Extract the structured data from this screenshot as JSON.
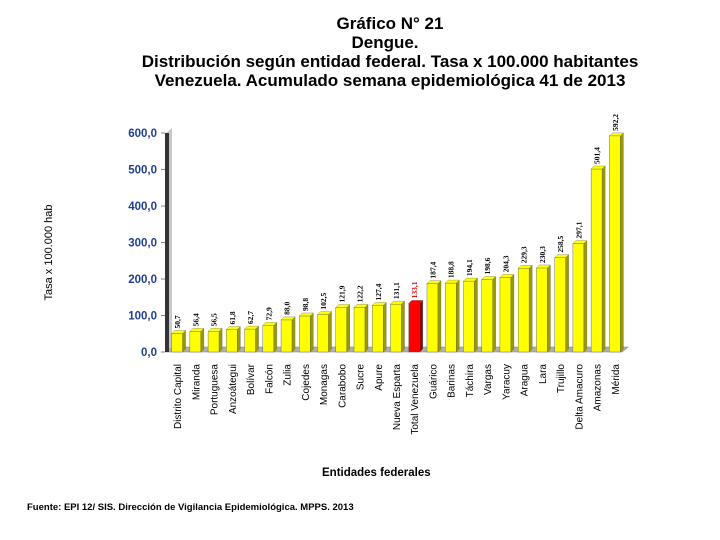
{
  "header": {
    "figure_number": "Gráfico  N° 21",
    "disease": "Dengue.",
    "subtitle": "Distribución según entidad federal. Tasa x 100.000 habitantes",
    "context": "Venezuela. Acumulado semana epidemiológica 41 de 2013"
  },
  "source": "Fuente: EPI 12/ SIS. Dirección de Vigilancia Epidemiológica. MPPS. 2013",
  "colors": {
    "bar": "#ffff00",
    "bar_highlight": "#ff0000",
    "bar_side": "#9a9a00",
    "bar_side_highlight": "#8a0000",
    "axis_text": "#1f3f8f",
    "wall": "#c8c8c8",
    "floor": "#b0b0b0"
  },
  "chart_data": {
    "type": "bar",
    "title": "Distribución según entidad federal. Tasa x 100.000 habitantes",
    "xlabel": "Entidades federales",
    "ylabel": "Tasa x 100.000 hab",
    "ylim": [
      0,
      600
    ],
    "yticks": [
      "0,0",
      "100,0",
      "200,0",
      "300,0",
      "400,0",
      "500,0",
      "600,0"
    ],
    "ytick_values": [
      0,
      100,
      200,
      300,
      400,
      500,
      600
    ],
    "highlight_category": "Total Venezuela",
    "categories": [
      "Distrito Capital",
      "Miranda",
      "Portuguesa",
      "Anzoátegui",
      "Bolívar",
      "Falcón",
      "Zulia",
      "Cojedes",
      "Monagas",
      "Carabobo",
      "Sucre",
      "Apure",
      "Nueva Esparta",
      "Total Venezuela",
      "Guárico",
      "Barinas",
      "Táchira",
      "Vargas",
      "Yaracuy",
      "Aragua",
      "Lara",
      "Trujillo",
      "Delta Amacuro",
      "Amazonas",
      "Mérida"
    ],
    "values": [
      50.7,
      56.4,
      56.5,
      61.8,
      62.7,
      72.9,
      88.0,
      98.8,
      102.5,
      121.9,
      122.2,
      127.4,
      131.1,
      133.1,
      187.4,
      188.8,
      194.1,
      198.6,
      204.3,
      229.3,
      230.3,
      258.5,
      297.1,
      501.4,
      592.2
    ],
    "value_labels": [
      "50,7",
      "56,4",
      "56,5",
      "61,8",
      "62,7",
      "72,9",
      "88,0",
      "98,8",
      "102,5",
      "121,9",
      "122,2",
      "127,4",
      "131,1",
      "133,1",
      "187,4",
      "188,8",
      "194,1",
      "198,6",
      "204,3",
      "229,3",
      "230,3",
      "258,5",
      "297,1",
      "501,4",
      "592,2"
    ],
    "grid": false
  }
}
